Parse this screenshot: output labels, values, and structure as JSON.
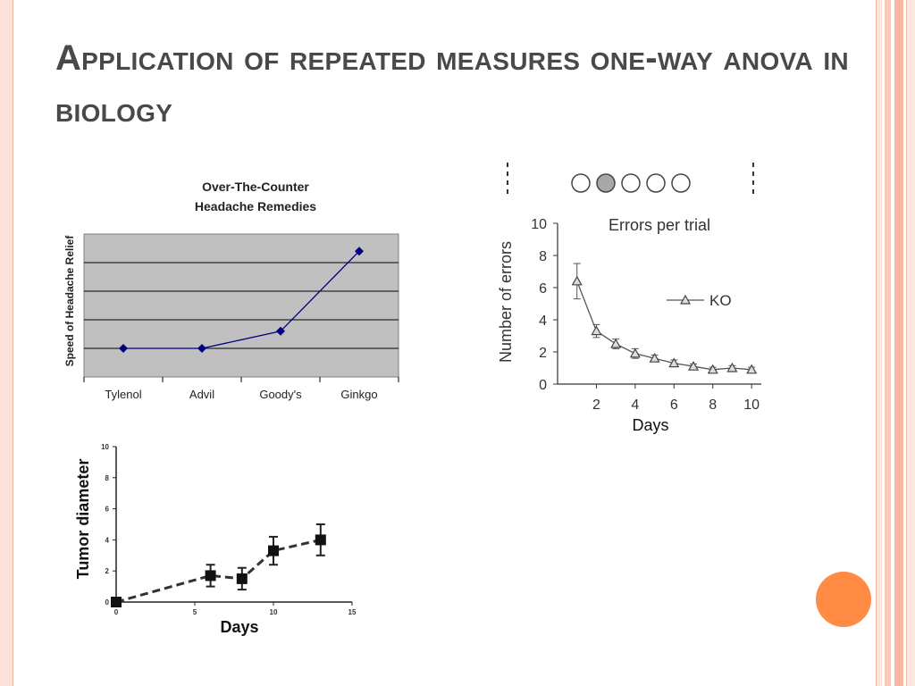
{
  "slide": {
    "title": "Application of repeated measures one-way anova in biology",
    "colors": {
      "accent": "#ff8b45",
      "title": "#494949",
      "deco_stripe": "#f7b7a3",
      "deco_light": "#fde6de"
    }
  },
  "chart_data": [
    {
      "type": "line",
      "title": "Over-The-Counter Headache Remedies",
      "title_lines": [
        "Over-The-Counter",
        "Headache Remedies"
      ],
      "xlabel": "",
      "ylabel": "Speed of Headache Relief",
      "categories": [
        "Tylenol",
        "Advil",
        "Goody's",
        "Ginkgo"
      ],
      "values": [
        1.0,
        1.0,
        1.6,
        4.4
      ],
      "ylim": [
        0,
        5
      ],
      "grid": true,
      "plot_background": "#c0c0c0",
      "series_color": "#000080",
      "marker": "diamond"
    },
    {
      "type": "line",
      "title": "Errors per trial",
      "xlabel": "Days",
      "ylabel": "Number of errors",
      "xlim": [
        0,
        10.5
      ],
      "ylim": [
        0,
        10
      ],
      "xticks": [
        2,
        4,
        6,
        8,
        10
      ],
      "yticks": [
        0,
        2,
        4,
        6,
        8,
        10
      ],
      "series": [
        {
          "name": "KO",
          "marker": "open-triangle",
          "x": [
            1,
            2,
            3,
            4,
            5,
            6,
            7,
            8,
            9,
            10
          ],
          "y": [
            6.4,
            3.3,
            2.5,
            1.9,
            1.6,
            1.3,
            1.1,
            0.9,
            1.0,
            0.9
          ],
          "error": [
            1.1,
            0.4,
            0.3,
            0.3,
            0.2,
            0.2,
            0.15,
            0.15,
            0.15,
            0.15
          ]
        }
      ],
      "legend": "right",
      "grid": false,
      "trial_circles": 5,
      "highlighted_circle": 2
    },
    {
      "type": "line",
      "title": "",
      "xlabel": "Days",
      "ylabel": "Tumor diameter",
      "xlim": [
        0,
        15
      ],
      "ylim": [
        0,
        10
      ],
      "xticks": [
        0,
        5,
        10,
        15
      ],
      "yticks": [
        0,
        2,
        4,
        6,
        8,
        10
      ],
      "series": [
        {
          "marker": "filled-square",
          "line_style": "dashed",
          "x": [
            0,
            6,
            8,
            10,
            13
          ],
          "y": [
            0,
            1.7,
            1.5,
            3.3,
            4.0
          ],
          "error": [
            0.2,
            0.7,
            0.7,
            0.9,
            1.0
          ]
        }
      ],
      "grid": false
    }
  ]
}
